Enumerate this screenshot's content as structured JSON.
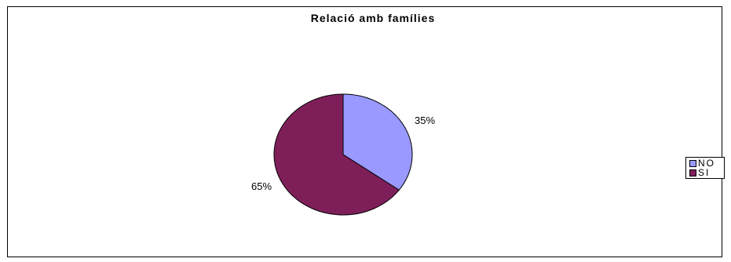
{
  "chart_data": {
    "type": "pie",
    "title": "Relació amb famílies",
    "categories": [
      "NO",
      "SI"
    ],
    "values": [
      35,
      65
    ],
    "labels": [
      "35%",
      "65%"
    ],
    "colors": [
      "#9999ff",
      "#7f1f5a"
    ],
    "legend_position": "right",
    "start_angle": "12 o'clock",
    "direction": "clockwise"
  }
}
